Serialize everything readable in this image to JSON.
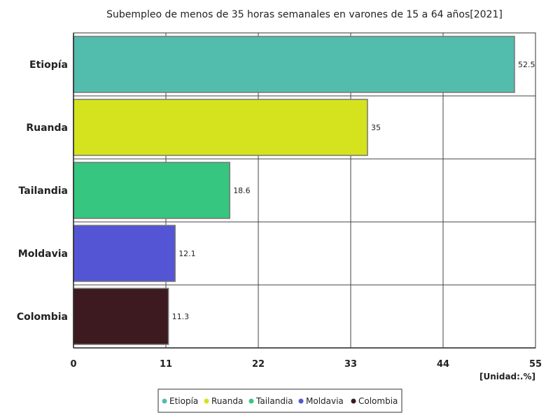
{
  "chart_data": {
    "type": "bar",
    "orientation": "horizontal",
    "title": "Subempleo de menos de 35 horas semanales en varones de 15 a 64 años[2021]",
    "unit_label": "[Unidad:.%]",
    "categories": [
      "Etiopía",
      "Ruanda",
      "Tailandia",
      "Moldavia",
      "Colombia"
    ],
    "values": [
      52.5,
      35,
      18.6,
      12.1,
      11.3
    ],
    "value_labels": [
      "52.5",
      "35",
      "18.6",
      "12.1",
      "11.3"
    ],
    "colors": [
      "#52bcad",
      "#d5e21e",
      "#36c67f",
      "#5455d4",
      "#3d1a1f"
    ],
    "xlim": [
      0,
      55
    ],
    "xticks": [
      0,
      11,
      22,
      33,
      44,
      55
    ],
    "grid": true,
    "legend": {
      "position": "bottom-center",
      "entries": [
        "Etiopía",
        "Ruanda",
        "Tailandia",
        "Moldavia",
        "Colombia"
      ]
    }
  }
}
